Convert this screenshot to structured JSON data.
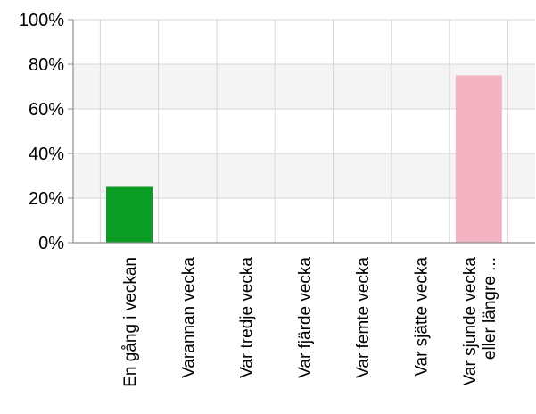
{
  "chart_data": {
    "type": "bar",
    "categories": [
      [
        "En gång i veckan"
      ],
      [
        "Varannan vecka"
      ],
      [
        "Var tredje vecka"
      ],
      [
        "Var fjärde vecka"
      ],
      [
        "Var femte vecka"
      ],
      [
        "Var sjätte vecka"
      ],
      [
        "Var sjunde vecka",
        "eller längre ..."
      ]
    ],
    "values": [
      25,
      0,
      0,
      0,
      0,
      0,
      75
    ],
    "unit": "%",
    "ylim": [
      0,
      100
    ],
    "yticks": [
      0,
      20,
      40,
      60,
      80,
      100
    ],
    "ytick_labels": [
      "0%",
      "20%",
      "40%",
      "60%",
      "80%",
      "100%"
    ],
    "title": "",
    "xlabel": "",
    "ylabel": "",
    "grid": true,
    "legend": "none",
    "colors": [
      "#0a9c23",
      "#0a9c23",
      "#0a9c23",
      "#0a9c23",
      "#0a9c23",
      "#0a9c23",
      "#f4b3c2"
    ],
    "band_color": "#f4f4f4",
    "grid_color": "#d6d6d6",
    "axis_color": "#8c8c8c"
  }
}
